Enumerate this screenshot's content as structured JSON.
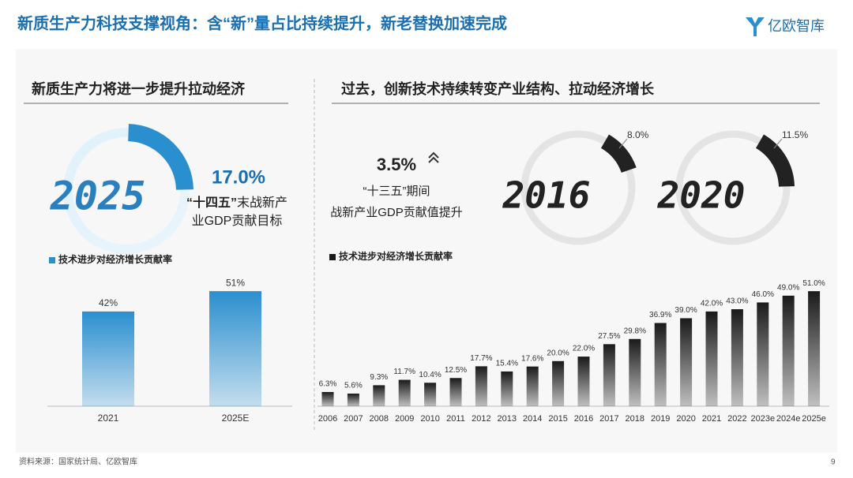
{
  "header": {
    "title": "新质生产力科技支撑视角：含“新”量占比持续提升，新老替换加速完成",
    "logo": "亿欧智库"
  },
  "left_panel": {
    "heading": "新质生产力将进一步提升拉动经济",
    "gauge": {
      "year": "2025",
      "value": 17.0,
      "value_label": "17.0%",
      "color": "#2a8fcf",
      "caption": [
        "“十四五”",
        "末战新产",
        "业GDP贡献目标"
      ]
    }
  },
  "right_panel": {
    "heading": "过去，创新技术持续转变产业结构、拉动经济增长",
    "increase": {
      "value": 3.5,
      "value_label": "3.5%",
      "caption": [
        "“十三五”期间",
        "战新产业GDP贡献值提升"
      ]
    },
    "gauges": [
      {
        "year": "2016",
        "value": 8.0,
        "value_label": "8.0%",
        "color": "#222222"
      },
      {
        "year": "2020",
        "value": 11.5,
        "value_label": "11.5%",
        "color": "#222222"
      }
    ]
  },
  "chart_data": [
    {
      "type": "bar",
      "categories": [
        "2021",
        "2025E"
      ],
      "series": [
        {
          "name": "技术进步对经济增长贡献率",
          "color": "#2a8fcf",
          "values": [
            42,
            51
          ],
          "value_labels": [
            "42%",
            "51%"
          ]
        }
      ]
    },
    {
      "type": "bar",
      "categories": [
        "2006",
        "2007",
        "2008",
        "2009",
        "2010",
        "2011",
        "2012",
        "2013",
        "2014",
        "2015",
        "2016",
        "2017",
        "2018",
        "2019",
        "2020",
        "2021",
        "2022",
        "2023e",
        "2024e",
        "2025e"
      ],
      "series": [
        {
          "name": "技术进步对经济增长贡献率",
          "color": "#1a1a1a",
          "values": [
            6.3,
            5.6,
            9.3,
            11.7,
            10.4,
            12.5,
            17.7,
            15.4,
            17.6,
            20.0,
            22.0,
            27.5,
            29.8,
            36.9,
            39.0,
            42.0,
            43.0,
            46.0,
            49.0,
            51.0
          ],
          "value_labels": [
            "6.3%",
            "5.6%",
            "9.3%",
            "11.7%",
            "10.4%",
            "12.5%",
            "17.7%",
            "15.4%",
            "17.6%",
            "20.0%",
            "22.0%",
            "27.5%",
            "29.8%",
            "36.9%",
            "39.0%",
            "42.0%",
            "43.0%",
            "46.0%",
            "49.0%",
            "51.0%"
          ]
        }
      ]
    }
  ],
  "footer": {
    "source": "资料来源：国家统计局、亿欧智库",
    "page": "9"
  }
}
